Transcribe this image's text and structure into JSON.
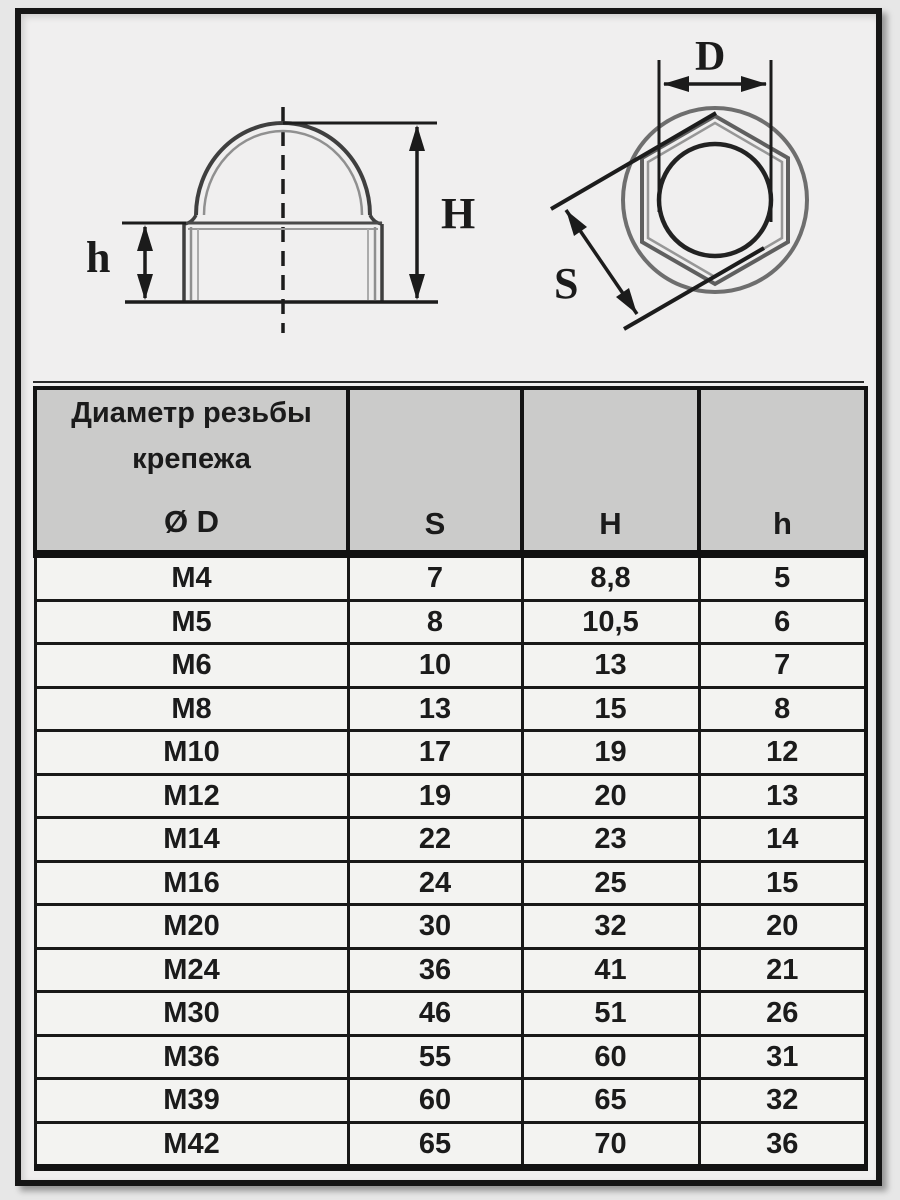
{
  "colors": {
    "page_bg": "#e7e7e7",
    "frame_bg": "#f0efef",
    "frame_border": "#161616",
    "header_bg": "#cbcbca",
    "row_bg": "#f3f3f1",
    "drawing_line_dark": "#1c1c1c",
    "drawing_line_gray": "#8a8a8a",
    "text": "#1b1b1b"
  },
  "drawings": {
    "side_view": {
      "label_H": "H",
      "label_h": "h"
    },
    "top_view": {
      "label_D": "D",
      "label_S": "S"
    }
  },
  "table": {
    "header": {
      "col1_lines": [
        "Диаметр резьбы",
        "крепежа",
        "Ø D"
      ],
      "col_s": "S",
      "col_h_big": "H",
      "col_h_small": "h"
    },
    "rows": [
      [
        "M4",
        "7",
        "8,8",
        "5"
      ],
      [
        "M5",
        "8",
        "10,5",
        "6"
      ],
      [
        "M6",
        "10",
        "13",
        "7"
      ],
      [
        "M8",
        "13",
        "15",
        "8"
      ],
      [
        "M10",
        "17",
        "19",
        "12"
      ],
      [
        "M12",
        "19",
        "20",
        "13"
      ],
      [
        "M14",
        "22",
        "23",
        "14"
      ],
      [
        "M16",
        "24",
        "25",
        "15"
      ],
      [
        "M20",
        "30",
        "32",
        "20"
      ],
      [
        "M24",
        "36",
        "41",
        "21"
      ],
      [
        "M30",
        "46",
        "51",
        "26"
      ],
      [
        "M36",
        "55",
        "60",
        "31"
      ],
      [
        "M39",
        "60",
        "65",
        "32"
      ],
      [
        "M42",
        "65",
        "70",
        "36"
      ]
    ]
  }
}
